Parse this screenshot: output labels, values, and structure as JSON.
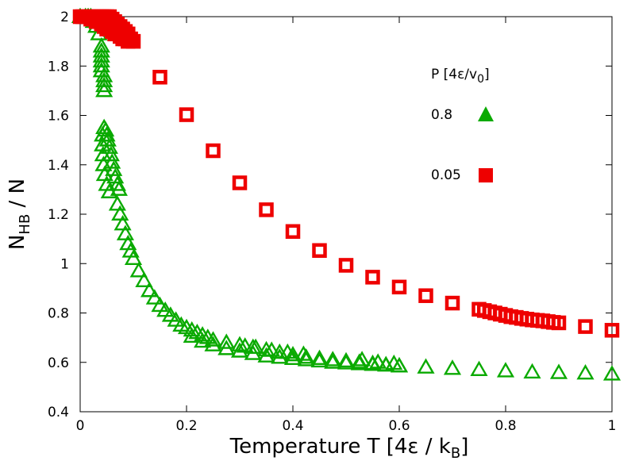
{
  "chart_data": {
    "type": "scatter",
    "title": "",
    "xlabel": {
      "main": "Temperature T [4",
      "eps": "ε",
      "mid": " / k",
      "sub": "B",
      "close": "]"
    },
    "ylabel": {
      "main": "N",
      "sub": "HB",
      "rest": " / N"
    },
    "xlim": [
      0,
      1
    ],
    "ylim": [
      0.4,
      2
    ],
    "xticks": [
      0,
      0.2,
      0.4,
      0.6,
      0.8,
      1
    ],
    "yticks": [
      0.4,
      0.6,
      0.8,
      1,
      1.2,
      1.4,
      1.6,
      1.8,
      2
    ],
    "grid": false,
    "legend": {
      "title": "P [4ε/v",
      "title_sub": "0",
      "title_close": "]",
      "position": "top-right"
    },
    "series": [
      {
        "name": "0.8",
        "marker": "triangle",
        "color": "#0aaa00",
        "points": [
          [
            0.0,
            2.0
          ],
          [
            0.01,
            2.0
          ],
          [
            0.015,
            2.0
          ],
          [
            0.02,
            2.0
          ],
          [
            0.025,
            1.98
          ],
          [
            0.03,
            1.96
          ],
          [
            0.035,
            1.93
          ],
          [
            0.04,
            1.88
          ],
          [
            0.04,
            1.86
          ],
          [
            0.04,
            1.84
          ],
          [
            0.04,
            1.82
          ],
          [
            0.04,
            1.8
          ],
          [
            0.04,
            1.78
          ],
          [
            0.045,
            1.76
          ],
          [
            0.045,
            1.74
          ],
          [
            0.045,
            1.72
          ],
          [
            0.045,
            1.7
          ],
          [
            0.045,
            1.55
          ],
          [
            0.048,
            1.54
          ],
          [
            0.05,
            1.52
          ],
          [
            0.052,
            1.5
          ],
          [
            0.055,
            1.47
          ],
          [
            0.058,
            1.44
          ],
          [
            0.06,
            1.41
          ],
          [
            0.063,
            1.38
          ],
          [
            0.066,
            1.35
          ],
          [
            0.07,
            1.32
          ],
          [
            0.073,
            1.3
          ],
          [
            0.042,
            1.52
          ],
          [
            0.042,
            1.48
          ],
          [
            0.043,
            1.44
          ],
          [
            0.044,
            1.4
          ],
          [
            0.046,
            1.36
          ],
          [
            0.05,
            1.32
          ],
          [
            0.055,
            1.29
          ],
          [
            0.07,
            1.24
          ],
          [
            0.075,
            1.2
          ],
          [
            0.08,
            1.16
          ],
          [
            0.085,
            1.12
          ],
          [
            0.09,
            1.08
          ],
          [
            0.095,
            1.05
          ],
          [
            0.1,
            1.02
          ],
          [
            0.11,
            0.97
          ],
          [
            0.12,
            0.93
          ],
          [
            0.13,
            0.89
          ],
          [
            0.14,
            0.86
          ],
          [
            0.15,
            0.83
          ],
          [
            0.16,
            0.81
          ],
          [
            0.17,
            0.79
          ],
          [
            0.18,
            0.77
          ],
          [
            0.19,
            0.75
          ],
          [
            0.2,
            0.74
          ],
          [
            0.21,
            0.73
          ],
          [
            0.22,
            0.72
          ],
          [
            0.23,
            0.71
          ],
          [
            0.24,
            0.7
          ],
          [
            0.25,
            0.69
          ],
          [
            0.275,
            0.68
          ],
          [
            0.3,
            0.67
          ],
          [
            0.325,
            0.66
          ],
          [
            0.35,
            0.65
          ],
          [
            0.375,
            0.64
          ],
          [
            0.4,
            0.63
          ],
          [
            0.425,
            0.62
          ],
          [
            0.45,
            0.615
          ],
          [
            0.475,
            0.61
          ],
          [
            0.5,
            0.605
          ],
          [
            0.525,
            0.6
          ],
          [
            0.55,
            0.595
          ],
          [
            0.575,
            0.59
          ],
          [
            0.6,
            0.585
          ],
          [
            0.65,
            0.58
          ],
          [
            0.7,
            0.575
          ],
          [
            0.75,
            0.57
          ],
          [
            0.8,
            0.565
          ],
          [
            0.85,
            0.56
          ],
          [
            0.9,
            0.558
          ],
          [
            0.95,
            0.556
          ],
          [
            1.0,
            0.552
          ],
          [
            0.21,
            0.705
          ],
          [
            0.23,
            0.685
          ],
          [
            0.25,
            0.67
          ],
          [
            0.275,
            0.655
          ],
          [
            0.3,
            0.645
          ],
          [
            0.325,
            0.635
          ],
          [
            0.35,
            0.625
          ],
          [
            0.375,
            0.62
          ],
          [
            0.4,
            0.615
          ],
          [
            0.425,
            0.61
          ],
          [
            0.45,
            0.605
          ],
          [
            0.475,
            0.6
          ],
          [
            0.5,
            0.597
          ],
          [
            0.525,
            0.594
          ],
          [
            0.55,
            0.591
          ],
          [
            0.575,
            0.588
          ],
          [
            0.6,
            0.585
          ],
          [
            0.31,
            0.665
          ],
          [
            0.33,
            0.66
          ],
          [
            0.36,
            0.648
          ],
          [
            0.39,
            0.64
          ],
          [
            0.42,
            0.632
          ],
          [
            0.53,
            0.61
          ],
          [
            0.56,
            0.6
          ],
          [
            0.59,
            0.595
          ]
        ]
      },
      {
        "name": "0.05",
        "marker": "square",
        "color": "#ee0000",
        "points": [
          [
            0.0,
            2.0
          ],
          [
            0.005,
            2.0
          ],
          [
            0.01,
            2.0
          ],
          [
            0.015,
            2.0
          ],
          [
            0.02,
            2.0
          ],
          [
            0.025,
            2.0
          ],
          [
            0.03,
            2.0
          ],
          [
            0.035,
            2.0
          ],
          [
            0.04,
            2.0
          ],
          [
            0.045,
            2.0
          ],
          [
            0.05,
            2.0
          ],
          [
            0.055,
            2.0
          ],
          [
            0.06,
            1.99
          ],
          [
            0.065,
            1.98
          ],
          [
            0.07,
            1.97
          ],
          [
            0.075,
            1.96
          ],
          [
            0.08,
            1.95
          ],
          [
            0.085,
            1.94
          ],
          [
            0.09,
            1.93
          ],
          [
            0.095,
            1.91
          ],
          [
            0.1,
            1.9
          ],
          [
            0.02,
            1.99
          ],
          [
            0.025,
            1.99
          ],
          [
            0.03,
            1.98
          ],
          [
            0.035,
            1.98
          ],
          [
            0.04,
            1.97
          ],
          [
            0.045,
            1.96
          ],
          [
            0.05,
            1.95
          ],
          [
            0.055,
            1.95
          ],
          [
            0.06,
            1.94
          ],
          [
            0.065,
            1.93
          ],
          [
            0.07,
            1.93
          ],
          [
            0.075,
            1.92
          ],
          [
            0.08,
            1.91
          ],
          [
            0.085,
            1.91
          ],
          [
            0.09,
            1.9
          ],
          [
            0.15,
            1.755
          ],
          [
            0.2,
            1.603
          ],
          [
            0.25,
            1.457
          ],
          [
            0.3,
            1.327
          ],
          [
            0.35,
            1.218
          ],
          [
            0.4,
            1.13
          ],
          [
            0.45,
            1.053
          ],
          [
            0.5,
            0.993
          ],
          [
            0.55,
            0.945
          ],
          [
            0.6,
            0.905
          ],
          [
            0.65,
            0.87
          ],
          [
            0.7,
            0.84
          ],
          [
            0.75,
            0.815
          ],
          [
            0.76,
            0.81
          ],
          [
            0.77,
            0.805
          ],
          [
            0.78,
            0.8
          ],
          [
            0.79,
            0.795
          ],
          [
            0.8,
            0.79
          ],
          [
            0.81,
            0.785
          ],
          [
            0.82,
            0.782
          ],
          [
            0.83,
            0.778
          ],
          [
            0.84,
            0.775
          ],
          [
            0.85,
            0.772
          ],
          [
            0.86,
            0.77
          ],
          [
            0.87,
            0.768
          ],
          [
            0.88,
            0.765
          ],
          [
            0.89,
            0.762
          ],
          [
            0.9,
            0.76
          ],
          [
            0.95,
            0.745
          ],
          [
            1.0,
            0.73
          ]
        ]
      }
    ]
  }
}
